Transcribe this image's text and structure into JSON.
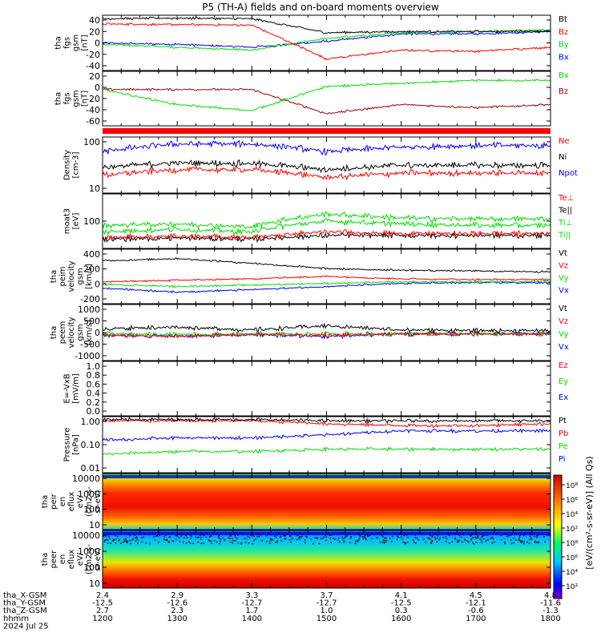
{
  "title": "P5 (TH-A) fields and on-board moments overview",
  "colors": {
    "black": "#000000",
    "red": "#ff0000",
    "green": "#00dd00",
    "blue": "#0000ff",
    "darkred": "#a00000",
    "palegreen": "#00ff00"
  },
  "panels": [
    {
      "id": "fgs-gsm",
      "ylabel": [
        "tha",
        "fgs",
        "gsm",
        "[nT]"
      ],
      "ticks": [
        "40",
        "20",
        "0",
        "-20",
        "-40"
      ],
      "legend": [
        {
          "text": "Bt",
          "color": "#000000"
        },
        {
          "text": "Bz",
          "color": "#ff0000"
        },
        {
          "text": "By",
          "color": "#00dd00"
        },
        {
          "text": "Bx",
          "color": "#0000ff"
        }
      ]
    },
    {
      "id": "fgs-gsm-dsl",
      "ylabel": [
        "tha",
        "fgs",
        "gsm",
        "[nT]"
      ],
      "ticks": [
        "20",
        "0",
        "-20",
        "-40",
        "-60"
      ],
      "legend": [
        {
          "text": "Bx",
          "color": "#00dd00"
        },
        {
          "text": "Bz",
          "color": "#a00000"
        }
      ]
    },
    {
      "id": "density",
      "ylabel": [
        "Density",
        "[cm-3]"
      ],
      "ticks": [
        "100",
        "10"
      ],
      "legend": [
        {
          "text": "Ne",
          "color": "#ff0000"
        },
        {
          "text": "Ni",
          "color": "#000000"
        },
        {
          "text": "Npot",
          "color": "#0000ff"
        }
      ]
    },
    {
      "id": "temperature",
      "ylabel": [
        "moat3",
        "[eV]"
      ],
      "ticks": [
        "100"
      ],
      "legend": [
        {
          "text": "Te⊥",
          "color": "#ff0000"
        },
        {
          "text": "Te||",
          "color": "#000000"
        },
        {
          "text": "Ti⊥",
          "color": "#00dd00"
        },
        {
          "text": "Ti||",
          "color": "#00dd00"
        }
      ]
    },
    {
      "id": "peim-velocity",
      "ylabel": [
        "tha",
        "peim",
        "velocity",
        "gsm",
        "[km/s]"
      ],
      "ticks": [
        "400",
        "200",
        "0",
        "-200"
      ],
      "legend": [
        {
          "text": "Vt",
          "color": "#000000"
        },
        {
          "text": "Vz",
          "color": "#ff0000"
        },
        {
          "text": "Vy",
          "color": "#00dd00"
        },
        {
          "text": "Vx",
          "color": "#0000ff"
        }
      ]
    },
    {
      "id": "peem-velocity",
      "ylabel": [
        "tha",
        "peem",
        "velocity",
        "gsm",
        "[km/s]"
      ],
      "ticks": [
        "1000",
        "500",
        "0",
        "-500",
        "-1000"
      ],
      "legend": [
        {
          "text": "Vt",
          "color": "#000000"
        },
        {
          "text": "Vz",
          "color": "#ff0000"
        },
        {
          "text": "Vy",
          "color": "#00dd00"
        },
        {
          "text": "Vx",
          "color": "#0000ff"
        }
      ]
    },
    {
      "id": "efield",
      "ylabel": [
        "E=-VxB",
        "[mV/m]"
      ],
      "ticks": [
        "1.0",
        "0.8",
        "0.6",
        "0.4",
        "0.2",
        "0.0"
      ],
      "legend": [
        {
          "text": "Ez",
          "color": "#ff0000"
        },
        {
          "text": "Ey",
          "color": "#00dd00"
        },
        {
          "text": "Ex",
          "color": "#0000ff"
        }
      ]
    },
    {
      "id": "pressure",
      "ylabel": [
        "Pressure",
        "[nPa]"
      ],
      "ticks": [
        "1.00",
        "0.10",
        "0.01"
      ],
      "legend": [
        {
          "text": "Pt",
          "color": "#000000"
        },
        {
          "text": "Pb",
          "color": "#ff0000"
        },
        {
          "text": "Pe",
          "color": "#00dd00"
        },
        {
          "text": "Pi",
          "color": "#0000ff"
        }
      ]
    },
    {
      "id": "peir-spec",
      "ylabel": [
        "tha",
        "peir",
        "en",
        "eflux",
        "eV/",
        "(cm2-s-",
        "sr-eV)"
      ],
      "ticks": [
        "10000",
        "1000",
        "100",
        "10"
      ]
    },
    {
      "id": "peer-spec",
      "ylabel": [
        "tha",
        "peer",
        "en",
        "eflux",
        "eV/",
        "(cm2-s-",
        "sr-eV)"
      ],
      "ticks": [
        "10000",
        "1000",
        "100",
        "10"
      ]
    }
  ],
  "colorbar": {
    "ticks": [
      "10⁸",
      "10⁶",
      "10⁴",
      "10²",
      "10⁸",
      "10⁶",
      "10⁴",
      "10²"
    ],
    "label": "[eV/(cm²-s-sr-eV)] (All Qs)"
  },
  "orbit": {
    "row_labels": [
      "tha_X-GSM",
      "tha_Y-GSM",
      "tha_Z-GSM",
      "hhmm",
      "2024 Jul 25"
    ],
    "columns": [
      {
        "x": "2.4",
        "y": "-12.5",
        "z": "2.7",
        "hhmm": "1200"
      },
      {
        "x": "2.9",
        "y": "-12.6",
        "z": "2.3",
        "hhmm": "1300"
      },
      {
        "x": "3.3",
        "y": "-12.7",
        "z": "1.7",
        "hhmm": "1400"
      },
      {
        "x": "3.7",
        "y": "-12.7",
        "z": "1.0",
        "hhmm": "1500"
      },
      {
        "x": "4.1",
        "y": "-12.5",
        "z": "0.3",
        "hhmm": "1600"
      },
      {
        "x": "4.5",
        "y": "-12.1",
        "z": "-0.6",
        "hhmm": "1700"
      },
      {
        "x": "4.8",
        "y": "-11.6",
        "z": "-1.3",
        "hhmm": "1800"
      }
    ]
  },
  "chart_data": {
    "type": "line",
    "title": "P5 (TH-A) fields and on-board moments overview",
    "x_unit": "hhmm",
    "x": [
      "1200",
      "1300",
      "1400",
      "1500",
      "1600",
      "1700",
      "1800"
    ],
    "panels": [
      {
        "ylim": [
          -45,
          50
        ],
        "series": [
          {
            "name": "Bt",
            "values": [
              44,
              45,
              44,
              20,
              22,
              22,
              23
            ]
          },
          {
            "name": "Bz",
            "values": [
              35,
              34,
              33,
              -25,
              -10,
              -12,
              -5
            ]
          },
          {
            "name": "By",
            "values": [
              0,
              -5,
              -10,
              10,
              20,
              22,
              25
            ]
          },
          {
            "name": "Bx",
            "values": [
              2,
              0,
              -5,
              5,
              18,
              18,
              22
            ]
          }
        ]
      },
      {
        "ylim": [
          -65,
          25
        ],
        "series": [
          {
            "name": "Bx",
            "values": [
              -5,
              -30,
              -40,
              0,
              5,
              10,
              10
            ]
          },
          {
            "name": "Bz",
            "values": [
              -5,
              -5,
              -5,
              -45,
              -30,
              -35,
              -30
            ]
          }
        ]
      },
      {
        "scale": "log",
        "ylim": [
          1,
          150
        ],
        "series": [
          {
            "name": "Ne",
            "values": [
              5,
              8,
              8,
              4,
              6,
              6,
              6
            ]
          },
          {
            "name": "Ni",
            "values": [
              10,
              15,
              14,
              8,
              12,
              12,
              12
            ]
          },
          {
            "name": "Npot",
            "values": [
              40,
              80,
              80,
              40,
              60,
              70,
              70
            ]
          }
        ]
      },
      {
        "scale": "log",
        "ylim": [
          10,
          1000
        ],
        "series": [
          {
            "name": "Te⊥",
            "values": [
              25,
              28,
              25,
              40,
              35,
              35,
              35
            ]
          },
          {
            "name": "Te||",
            "values": [
              22,
              24,
              22,
              30,
              30,
              30,
              30
            ]
          },
          {
            "name": "Ti⊥",
            "values": [
              70,
              80,
              60,
              180,
              130,
              120,
              120
            ]
          },
          {
            "name": "Ti||",
            "values": [
              40,
              50,
              40,
              100,
              80,
              70,
              70
            ]
          }
        ]
      },
      {
        "ylim": [
          -300,
          400
        ],
        "series": [
          {
            "name": "Vt",
            "values": [
              250,
              280,
              220,
              150,
              130,
              120,
              110
            ]
          },
          {
            "name": "Vz",
            "values": [
              -20,
              0,
              20,
              50,
              20,
              10,
              10
            ]
          },
          {
            "name": "Vy",
            "values": [
              -50,
              -80,
              -60,
              -40,
              -20,
              -20,
              -10
            ]
          },
          {
            "name": "Vx",
            "values": [
              -100,
              -150,
              -120,
              -80,
              -40,
              -30,
              -30
            ]
          }
        ]
      },
      {
        "ylim": [
          -1000,
          1100
        ],
        "series": [
          {
            "name": "Vt",
            "values": [
              200,
              250,
              150,
              300,
              150,
              120,
              120
            ]
          },
          {
            "name": "Vz",
            "values": [
              -50,
              -100,
              -20,
              -50,
              0,
              0,
              0
            ]
          },
          {
            "name": "Vy",
            "values": [
              0,
              -30,
              -10,
              0,
              0,
              0,
              0
            ]
          },
          {
            "name": "Vx",
            "values": [
              -50,
              -80,
              -30,
              -100,
              0,
              0,
              0
            ]
          }
        ]
      },
      {
        "ylim": [
          0,
          1
        ],
        "series": []
      },
      {
        "scale": "log",
        "ylim": [
          0.005,
          1.2
        ],
        "series": [
          {
            "name": "Pt",
            "values": [
              0.9,
              0.9,
              0.9,
              0.8,
              0.8,
              0.8,
              0.8
            ]
          },
          {
            "name": "Pb",
            "values": [
              0.8,
              0.8,
              0.8,
              0.6,
              0.5,
              0.5,
              0.6
            ]
          },
          {
            "name": "Pe",
            "values": [
              0.03,
              0.04,
              0.04,
              0.05,
              0.05,
              0.05,
              0.05
            ]
          },
          {
            "name": "Pi",
            "values": [
              0.12,
              0.15,
              0.15,
              0.2,
              0.3,
              0.3,
              0.3
            ]
          }
        ]
      }
    ]
  }
}
